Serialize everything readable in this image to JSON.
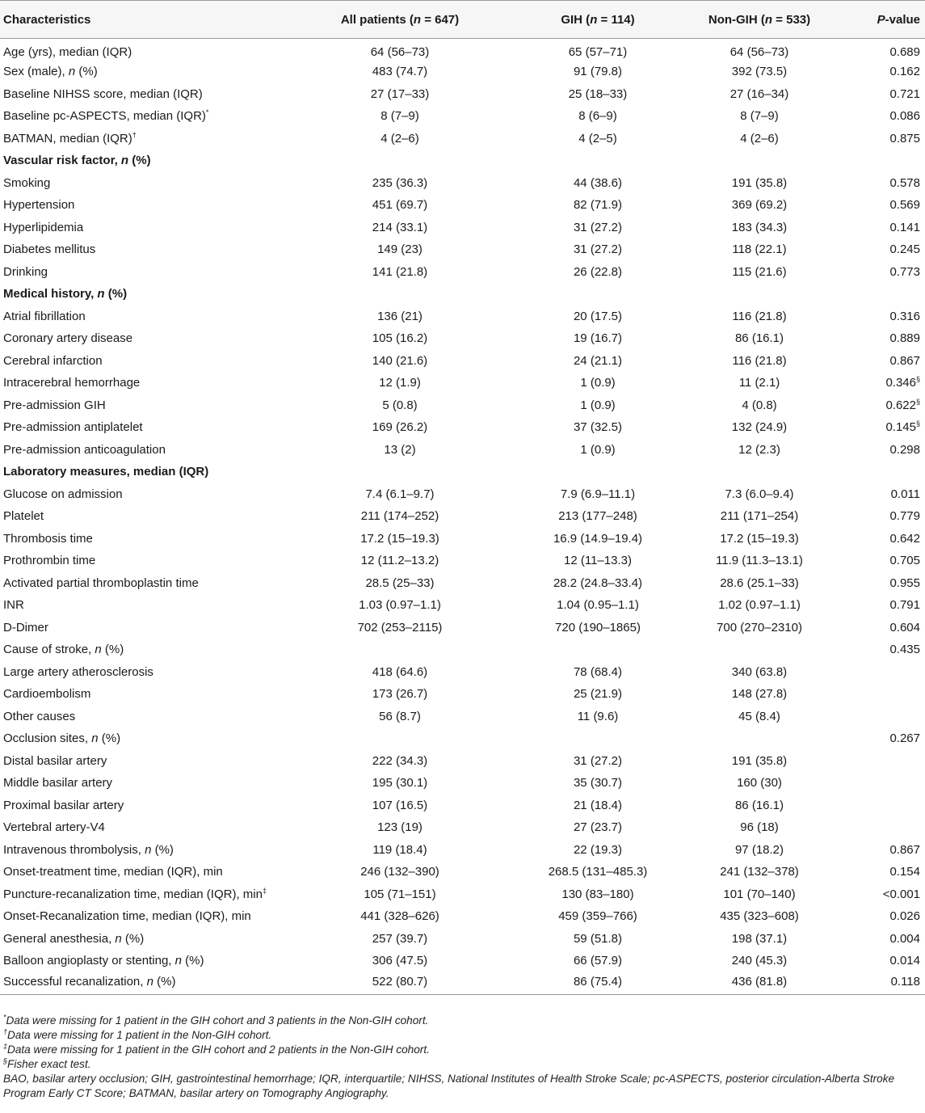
{
  "table": {
    "headers": [
      "Characteristics",
      "All patients (n = 647)",
      "GIH (n = 114)",
      "Non-GIH (n = 533)",
      "P-value"
    ],
    "rows": [
      {
        "label": "Age (yrs), median (IQR)",
        "all": "64 (56–73)",
        "gih": "65 (57–71)",
        "non": "64 (56–73)",
        "p": "0.689"
      },
      {
        "label": "Sex (male), n (%)",
        "all": "483 (74.7)",
        "gih": "91 (79.8)",
        "non": "392 (73.5)",
        "p": "0.162"
      },
      {
        "label": "Baseline NIHSS score, median (IQR)",
        "all": "27 (17–33)",
        "gih": "25 (18–33)",
        "non": "27 (16–34)",
        "p": "0.721"
      },
      {
        "label": "Baseline pc-ASPECTS, median (IQR)*",
        "all": "8 (7–9)",
        "gih": "8 (6–9)",
        "non": "8 (7–9)",
        "p": "0.086"
      },
      {
        "label": "BATMAN, median (IQR)†",
        "all": "4 (2–6)",
        "gih": "4 (2–5)",
        "non": "4 (2–6)",
        "p": "0.875"
      },
      {
        "label": "Vascular risk factor, n (%)",
        "section": true
      },
      {
        "label": "Smoking",
        "all": "235 (36.3)",
        "gih": "44 (38.6)",
        "non": "191 (35.8)",
        "p": "0.578"
      },
      {
        "label": "Hypertension",
        "all": "451 (69.7)",
        "gih": "82 (71.9)",
        "non": "369 (69.2)",
        "p": "0.569"
      },
      {
        "label": "Hyperlipidemia",
        "all": "214 (33.1)",
        "gih": "31 (27.2)",
        "non": "183 (34.3)",
        "p": "0.141"
      },
      {
        "label": "Diabetes mellitus",
        "all": "149 (23)",
        "gih": "31 (27.2)",
        "non": "118 (22.1)",
        "p": "0.245"
      },
      {
        "label": "Drinking",
        "all": "141 (21.8)",
        "gih": "26 (22.8)",
        "non": "115 (21.6)",
        "p": "0.773"
      },
      {
        "label": "Medical history, n (%)",
        "section": true
      },
      {
        "label": "Atrial fibrillation",
        "all": "136 (21)",
        "gih": "20 (17.5)",
        "non": "116 (21.8)",
        "p": "0.316"
      },
      {
        "label": "Coronary artery disease",
        "all": "105 (16.2)",
        "gih": "19 (16.7)",
        "non": "86 (16.1)",
        "p": "0.889"
      },
      {
        "label": "Cerebral infarction",
        "all": "140 (21.6)",
        "gih": "24 (21.1)",
        "non": "116 (21.8)",
        "p": "0.867"
      },
      {
        "label": "Intracerebral hemorrhage",
        "all": "12 (1.9)",
        "gih": "1 (0.9)",
        "non": "11 (2.1)",
        "p": "0.346§"
      },
      {
        "label": "Pre-admission GIH",
        "all": "5 (0.8)",
        "gih": "1 (0.9)",
        "non": "4 (0.8)",
        "p": "0.622§"
      },
      {
        "label": "Pre-admission antiplatelet",
        "all": "169 (26.2)",
        "gih": "37 (32.5)",
        "non": "132 (24.9)",
        "p": "0.145§"
      },
      {
        "label": "Pre-admission anticoagulation",
        "all": "13 (2)",
        "gih": "1 (0.9)",
        "non": "12 (2.3)",
        "p": "0.298"
      },
      {
        "label": "Laboratory measures, median (IQR)",
        "section": true
      },
      {
        "label": "Glucose on admission",
        "all": "7.4 (6.1–9.7)",
        "gih": "7.9 (6.9–11.1)",
        "non": "7.3 (6.0–9.4)",
        "p": "0.011"
      },
      {
        "label": "Platelet",
        "all": "211 (174–252)",
        "gih": "213 (177–248)",
        "non": "211 (171–254)",
        "p": "0.779"
      },
      {
        "label": "Thrombosis time",
        "all": "17.2 (15–19.3)",
        "gih": "16.9 (14.9–19.4)",
        "non": "17.2 (15–19.3)",
        "p": "0.642"
      },
      {
        "label": "Prothrombin time",
        "all": "12 (11.2–13.2)",
        "gih": "12 (11–13.3)",
        "non": "11.9 (11.3–13.1)",
        "p": "0.705"
      },
      {
        "label": "Activated partial thromboplastin time",
        "all": "28.5 (25–33)",
        "gih": "28.2 (24.8–33.4)",
        "non": "28.6 (25.1–33)",
        "p": "0.955"
      },
      {
        "label": "INR",
        "all": "1.03 (0.97–1.1)",
        "gih": "1.04 (0.95–1.1)",
        "non": "1.02 (0.97–1.1)",
        "p": "0.791"
      },
      {
        "label": "D-Dimer",
        "all": "702 (253–2115)",
        "gih": "720 (190–1865)",
        "non": "700 (270–2310)",
        "p": "0.604"
      },
      {
        "label": "Cause of stroke, n (%)",
        "all": "",
        "gih": "",
        "non": "",
        "p": "0.435"
      },
      {
        "label": "Large artery atherosclerosis",
        "all": "418 (64.6)",
        "gih": "78 (68.4)",
        "non": "340 (63.8)",
        "p": ""
      },
      {
        "label": "Cardioembolism",
        "all": "173 (26.7)",
        "gih": "25 (21.9)",
        "non": "148 (27.8)",
        "p": ""
      },
      {
        "label": "Other causes",
        "all": "56 (8.7)",
        "gih": "11 (9.6)",
        "non": "45 (8.4)",
        "p": ""
      },
      {
        "label": "Occlusion sites, n (%)",
        "all": "",
        "gih": "",
        "non": "",
        "p": "0.267"
      },
      {
        "label": "Distal basilar artery",
        "all": "222 (34.3)",
        "gih": "31 (27.2)",
        "non": "191 (35.8)",
        "p": ""
      },
      {
        "label": "Middle basilar artery",
        "all": "195 (30.1)",
        "gih": "35 (30.7)",
        "non": "160 (30)",
        "p": ""
      },
      {
        "label": "Proximal basilar artery",
        "all": "107 (16.5)",
        "gih": "21 (18.4)",
        "non": "86 (16.1)",
        "p": ""
      },
      {
        "label": "Vertebral artery-V4",
        "all": "123 (19)",
        "gih": "27 (23.7)",
        "non": "96 (18)",
        "p": ""
      },
      {
        "label": "Intravenous thrombolysis, n (%)",
        "all": "119 (18.4)",
        "gih": "22 (19.3)",
        "non": "97 (18.2)",
        "p": "0.867"
      },
      {
        "label": "Onset-treatment time, median (IQR), min",
        "all": "246 (132–390)",
        "gih": "268.5 (131–485.3)",
        "non": "241 (132–378)",
        "p": "0.154"
      },
      {
        "label": "Puncture-recanalization time, median (IQR), min‡",
        "all": "105 (71–151)",
        "gih": "130 (83–180)",
        "non": "101 (70–140)",
        "p": "<0.001"
      },
      {
        "label": "Onset-Recanalization time, median (IQR), min",
        "all": "441 (328–626)",
        "gih": "459 (359–766)",
        "non": "435 (323–608)",
        "p": "0.026"
      },
      {
        "label": "General anesthesia, n (%)",
        "all": "257 (39.7)",
        "gih": "59 (51.8)",
        "non": "198 (37.1)",
        "p": "0.004"
      },
      {
        "label": "Balloon angioplasty or stenting, n (%)",
        "all": "306 (47.5)",
        "gih": "66 (57.9)",
        "non": "240 (45.3)",
        "p": "0.014"
      },
      {
        "label": "Successful recanalization, n (%)",
        "all": "522 (80.7)",
        "gih": "86 (75.4)",
        "non": "436 (81.8)",
        "p": "0.118"
      }
    ]
  },
  "footnotes": [
    "*Data were missing for 1 patient in the GIH cohort and 3 patients in the Non-GIH cohort.",
    "†Data were missing for 1 patient in the Non-GIH cohort.",
    "‡Data were missing for 1 patient in the GIH cohort and 2 patients in the Non-GIH cohort.",
    "§Fisher exact test.",
    "BAO, basilar artery occlusion; GIH, gastrointestinal hemorrhage; IQR, interquartile; NIHSS, National Institutes of Health Stroke Scale; pc-ASPECTS, posterior circulation-Alberta Stroke Program Early CT Score; BATMAN, basilar artery on Tomography Angiography."
  ]
}
